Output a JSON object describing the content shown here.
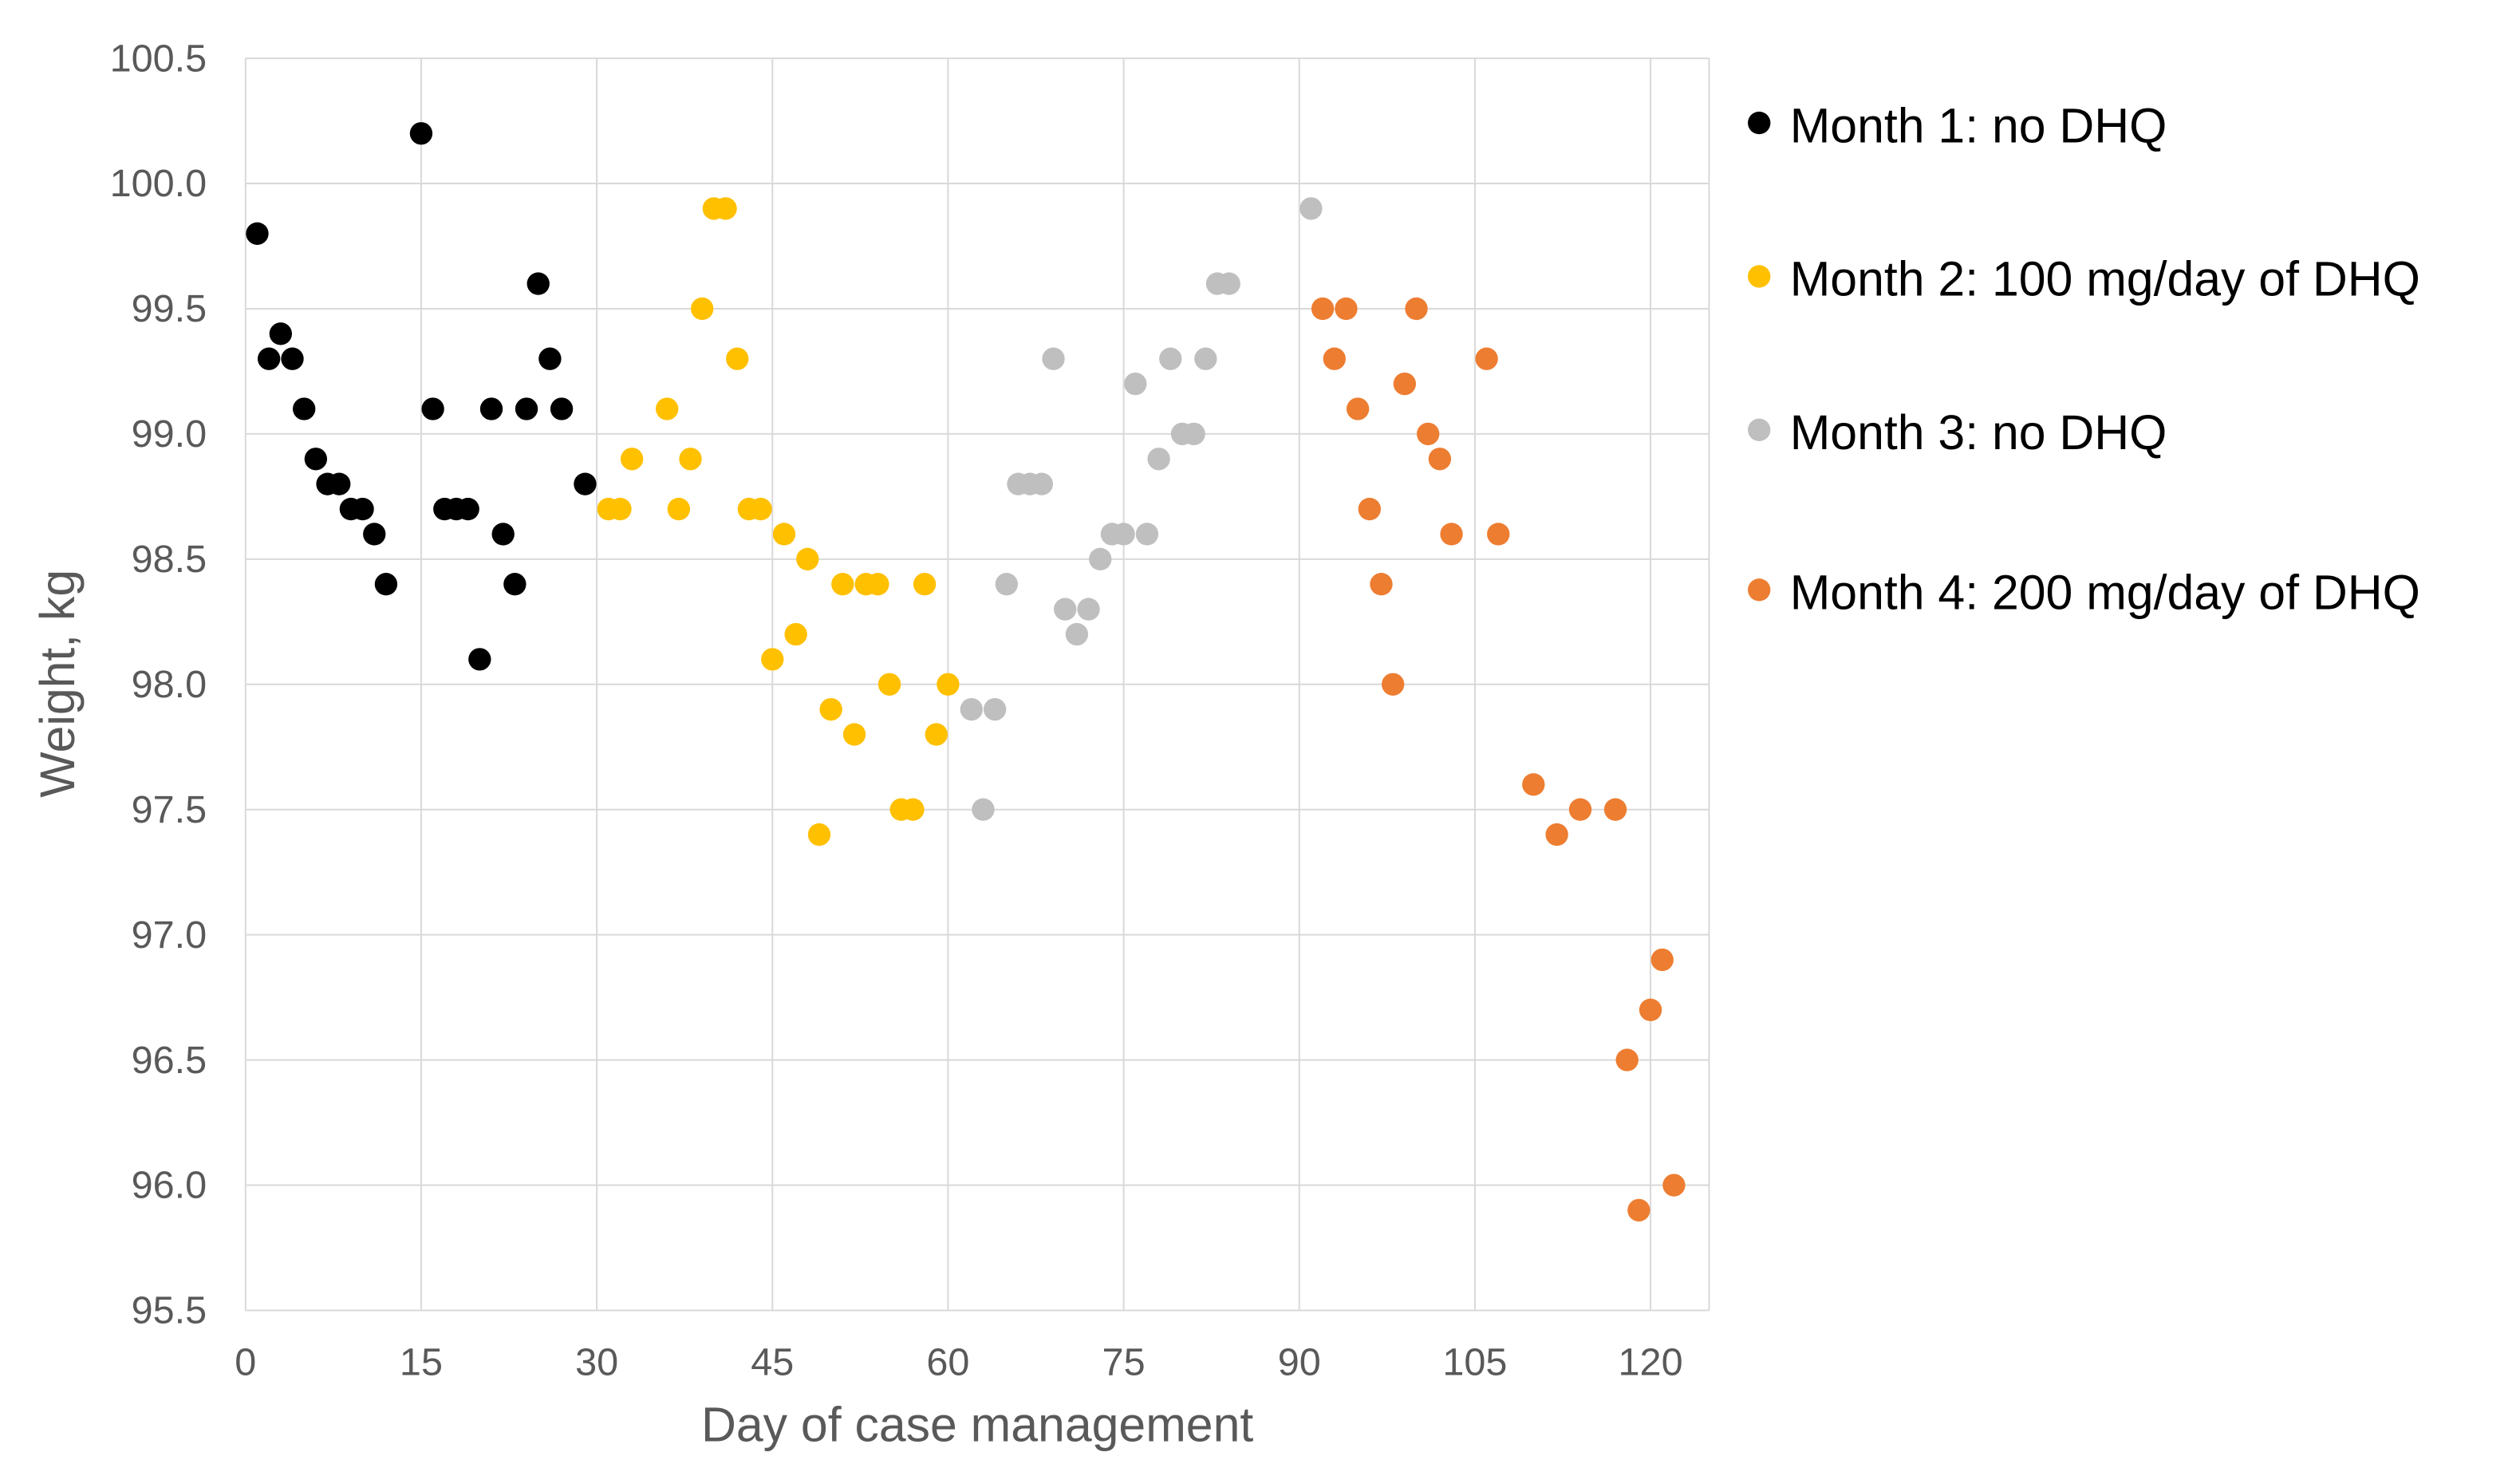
{
  "chart_data": {
    "type": "scatter",
    "title": "",
    "xlabel": "Day of case management",
    "ylabel": "Weight, kg",
    "xlim": [
      0,
      125
    ],
    "ylim": [
      95.5,
      100.5
    ],
    "xticks": [
      0,
      15,
      30,
      45,
      60,
      75,
      90,
      105,
      120
    ],
    "yticks": [
      "95.5",
      "96.0",
      "96.5",
      "97.0",
      "97.5",
      "98.0",
      "98.5",
      "99.0",
      "99.5",
      "100.0",
      "100.5"
    ],
    "grid": true,
    "legend_position": "right",
    "series": [
      {
        "name": "Month 1: no DHQ",
        "color": "#000000",
        "x": [
          1,
          2,
          3,
          4,
          5,
          6,
          7,
          8,
          9,
          10,
          11,
          12,
          15,
          16,
          17,
          18,
          19,
          20,
          21,
          22,
          23,
          24,
          25,
          26,
          27,
          29
        ],
        "y": [
          99.8,
          99.3,
          99.4,
          99.3,
          99.1,
          98.9,
          98.8,
          98.8,
          98.7,
          98.7,
          98.6,
          98.4,
          100.2,
          99.1,
          98.7,
          98.7,
          98.7,
          98.1,
          99.1,
          98.6,
          98.4,
          99.1,
          99.6,
          99.3,
          99.1,
          98.8
        ]
      },
      {
        "name": "Month 2: 100 mg/day of DHQ",
        "color": "#FFC000",
        "x": [
          31,
          32,
          33,
          36,
          37,
          38,
          39,
          40,
          41,
          42,
          43,
          44,
          45,
          46,
          47,
          48,
          49,
          50,
          51,
          52,
          53,
          54,
          55,
          56,
          57,
          58,
          59,
          60
        ],
        "y": [
          98.7,
          98.7,
          98.9,
          99.1,
          98.7,
          98.9,
          99.5,
          99.9,
          99.9,
          99.3,
          98.7,
          98.7,
          98.1,
          98.6,
          98.2,
          98.5,
          97.4,
          97.9,
          98.4,
          97.8,
          98.4,
          98.4,
          98.0,
          97.5,
          97.5,
          98.4,
          97.8,
          98.0
        ]
      },
      {
        "name": "Month 3: no DHQ",
        "color": "#BFBFBF",
        "x": [
          62,
          63,
          64,
          65,
          66,
          67,
          68,
          69,
          70,
          71,
          72,
          73,
          74,
          75,
          76,
          77,
          78,
          79,
          80,
          81,
          82,
          83,
          84,
          91
        ],
        "y": [
          97.9,
          97.5,
          97.9,
          98.4,
          98.8,
          98.8,
          98.8,
          99.3,
          98.3,
          98.2,
          98.3,
          98.5,
          98.6,
          98.6,
          99.2,
          98.6,
          98.9,
          99.3,
          99.0,
          99.0,
          99.3,
          99.6,
          99.6,
          99.9
        ]
      },
      {
        "name": "Month 4: 200 mg/day of DHQ",
        "color": "#ED7D31",
        "x": [
          92,
          93,
          94,
          95,
          96,
          97,
          98,
          99,
          100,
          101,
          102,
          103,
          106,
          107,
          110,
          112,
          114,
          117,
          118,
          119,
          120,
          121,
          122
        ],
        "y": [
          99.5,
          99.3,
          99.5,
          99.1,
          98.7,
          98.4,
          98.0,
          99.2,
          99.5,
          99.0,
          98.9,
          98.6,
          99.3,
          98.6,
          97.6,
          97.4,
          97.5,
          97.5,
          96.5,
          95.9,
          96.7,
          96.9,
          96.0
        ]
      }
    ]
  }
}
